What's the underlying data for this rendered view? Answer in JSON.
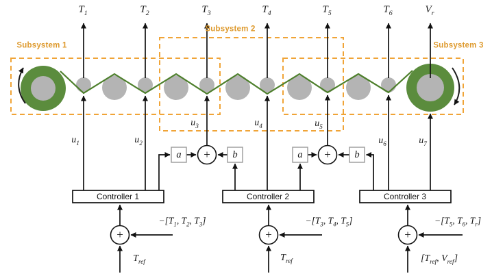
{
  "colors": {
    "accent_orange_dash": "#F0A437",
    "accent_orange_text": "#DE9A2E",
    "roll_green": "#5B8C3D",
    "web_green": "#4D7F2B",
    "roller_gray": "#B4B4B4",
    "line_black": "#1a1a1a"
  },
  "subsystems": [
    {
      "label": "Subsystem 1"
    },
    {
      "label": "Subsystem 2"
    },
    {
      "label": "Subsystem 3"
    }
  ],
  "controllers": [
    {
      "label": "Controller 1"
    },
    {
      "label": "Controller 2"
    },
    {
      "label": "Controller 3"
    }
  ],
  "gains": {
    "a": "a",
    "b": "b"
  },
  "symbols": {
    "plus": "+"
  },
  "math": {
    "t1": [
      {
        "t": "T"
      },
      {
        "t": "1",
        "sub": true
      }
    ],
    "t2": [
      {
        "t": "T"
      },
      {
        "t": "2",
        "sub": true
      }
    ],
    "t3": [
      {
        "t": "T"
      },
      {
        "t": "3",
        "sub": true
      }
    ],
    "t4": [
      {
        "t": "T"
      },
      {
        "t": "4",
        "sub": true
      }
    ],
    "t5": [
      {
        "t": "T"
      },
      {
        "t": "5",
        "sub": true
      }
    ],
    "t6": [
      {
        "t": "T"
      },
      {
        "t": "6",
        "sub": true
      }
    ],
    "vr": [
      {
        "t": "V"
      },
      {
        "t": "r",
        "sub": true
      }
    ],
    "u1": [
      {
        "t": "u"
      },
      {
        "t": "1",
        "sub": true
      }
    ],
    "u2": [
      {
        "t": "u"
      },
      {
        "t": "2",
        "sub": true
      }
    ],
    "u3": [
      {
        "t": "u"
      },
      {
        "t": "3",
        "sub": true
      }
    ],
    "u4": [
      {
        "t": "u"
      },
      {
        "t": "4",
        "sub": true
      }
    ],
    "u5": [
      {
        "t": "u"
      },
      {
        "t": "5",
        "sub": true
      }
    ],
    "u6": [
      {
        "t": "u"
      },
      {
        "t": "6",
        "sub": true
      }
    ],
    "u7": [
      {
        "t": "u"
      },
      {
        "t": "7",
        "sub": true
      }
    ],
    "fb1": [
      {
        "t": "−[T"
      },
      {
        "t": "1",
        "sub": true
      },
      {
        "t": ", T"
      },
      {
        "t": "2",
        "sub": true
      },
      {
        "t": ", T"
      },
      {
        "t": "3",
        "sub": true
      },
      {
        "t": "]"
      }
    ],
    "fb2": [
      {
        "t": "−[T"
      },
      {
        "t": "3",
        "sub": true
      },
      {
        "t": ", T"
      },
      {
        "t": "4",
        "sub": true
      },
      {
        "t": ", T"
      },
      {
        "t": "5",
        "sub": true
      },
      {
        "t": "]"
      }
    ],
    "fb3": [
      {
        "t": "−[T"
      },
      {
        "t": "5",
        "sub": true
      },
      {
        "t": ", T"
      },
      {
        "t": "6",
        "sub": true
      },
      {
        "t": ", T"
      },
      {
        "t": "r",
        "sub": true
      },
      {
        "t": "]"
      }
    ],
    "ref1": [
      {
        "t": "T"
      },
      {
        "t": "ref",
        "sub": true
      }
    ],
    "ref2": [
      {
        "t": "T"
      },
      {
        "t": "ref",
        "sub": true
      }
    ],
    "ref3": [
      {
        "t": "[T"
      },
      {
        "t": "ref",
        "sub": true
      },
      {
        "t": ", V"
      },
      {
        "t": "ref",
        "sub": true
      },
      {
        "t": "]"
      }
    ]
  }
}
